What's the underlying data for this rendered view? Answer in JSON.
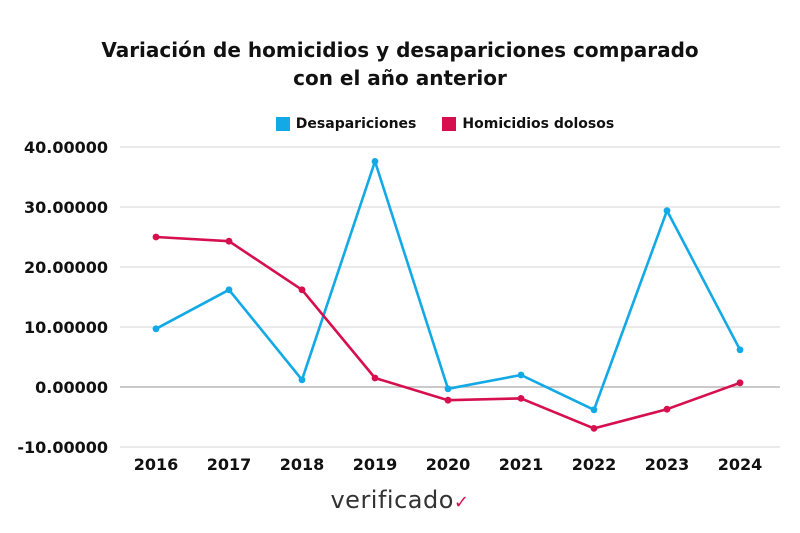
{
  "chart_data": {
    "type": "line",
    "title_lines": [
      "Variación de homicidios y desapariciones comparado",
      "con el año anterior"
    ],
    "xlabel": "",
    "ylabel": "",
    "categories": [
      "2016",
      "2017",
      "2018",
      "2019",
      "2020",
      "2021",
      "2022",
      "2023",
      "2024"
    ],
    "ylim": [
      -10,
      40
    ],
    "yticks": [
      -10,
      0,
      10,
      20,
      30,
      40
    ],
    "ytick_labels": [
      "-10.00000",
      "0.00000",
      "10.00000",
      "20.00000",
      "30.00000",
      "40.00000"
    ],
    "grid": true,
    "legend_position": "top",
    "series": [
      {
        "name": "Desapariciones",
        "color": "#12a9e6",
        "values": [
          9.7,
          16.2,
          1.2,
          37.6,
          -0.3,
          2.0,
          -3.8,
          29.4,
          6.2
        ]
      },
      {
        "name": "Homicidios dolosos",
        "color": "#d60f4f",
        "values": [
          25.0,
          24.3,
          16.2,
          1.5,
          -2.2,
          -1.9,
          -6.9,
          -3.7,
          0.7
        ]
      }
    ]
  },
  "logo_text": "verificado"
}
